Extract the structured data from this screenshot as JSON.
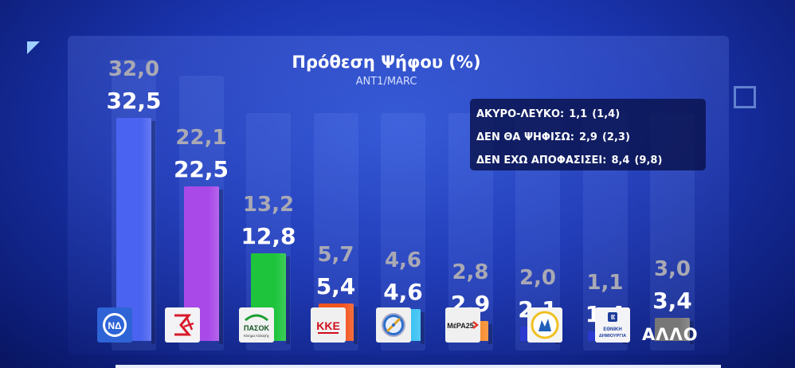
{
  "title": "Πρόθεση Ψήφου (%)",
  "subtitle": "ANT1/MARC",
  "info_lines": [
    {
      "label": "ΑΚΥΡΟ-ΛΕΥΚΟ:",
      "value": "1,1",
      "previous": "(1,4)"
    },
    {
      "label": "ΔΕΝ ΘΑ ΨΗΦΙΣΩ:",
      "value": "2,9",
      "previous": "(2,3)"
    },
    {
      "label": "ΔΕΝ ΕΧΩ ΑΠΟΦΑΣΙΣΕΙ:",
      "value": "8,4",
      "previous": "(9,8)"
    }
  ],
  "parties": [
    {
      "key": "nd",
      "current_label": "32,5",
      "previous_label": "32,0",
      "color": "#4a63f0",
      "logo_icon": "nd-logo-icon"
    },
    {
      "key": "syriza",
      "current_label": "22,5",
      "previous_label": "22,1",
      "color": "#a94ae8",
      "logo_icon": "syriza-logo-icon"
    },
    {
      "key": "pasok",
      "current_label": "12,8",
      "previous_label": "13,2",
      "color": "#1ec43c",
      "logo_icon": "pasok-logo-icon",
      "logo_text": "ΠΑΣΟΚ",
      "logo_sub": "Κίνημα Αλλαγής"
    },
    {
      "key": "kke",
      "current_label": "5,4",
      "previous_label": "5,7",
      "color": "#f2561e",
      "logo_icon": "kke-logo-icon",
      "logo_text": "ΚΚΕ"
    },
    {
      "key": "elliniki_lysi",
      "current_label": "4,6",
      "previous_label": "4,6",
      "color": "#38c0f2",
      "logo_icon": "compass-logo-icon"
    },
    {
      "key": "mera25",
      "current_label": "2,9",
      "previous_label": "2,8",
      "color": "#f88a2a",
      "logo_icon": "mera25-logo-icon",
      "logo_text": "ΜέΡΑ25"
    },
    {
      "key": "niki",
      "current_label": "2,1",
      "previous_label": "2,0",
      "color": "#2a3ad0",
      "logo_icon": "niki-logo-icon"
    },
    {
      "key": "ethniki_dimiourgia",
      "current_label": "1,4",
      "previous_label": "1,1",
      "color": "#2a3ad0",
      "logo_icon": "ethniki-dimiourgia-logo-icon",
      "logo_text": "ΕΘΝΙΚΗ ΔΗΜΙΟΥΡΓΙΑ"
    },
    {
      "key": "allo",
      "current_label": "3,4",
      "previous_label": "3,0",
      "color": "#777777",
      "logo_icon": "",
      "name": "ΑΛΛΟ"
    }
  ],
  "chart_data": {
    "type": "bar",
    "title": "Πρόθεση Ψήφου (%)",
    "subtitle": "ANT1/MARC",
    "categories": [
      "ΝΔ",
      "ΣΥΡΙΖΑ",
      "ΠΑΣΟΚ",
      "ΚΚΕ",
      "Ελληνική Λύση",
      "ΜέΡΑ25",
      "ΝΙΚΗ",
      "ΕΘΝΙΚΗ ΔΗΜΙΟΥΡΓΙΑ",
      "ΑΛΛΟ"
    ],
    "series": [
      {
        "values": [
          32.5,
          22.5,
          12.8,
          5.4,
          4.6,
          2.9,
          2.1,
          1.4,
          3.4
        ]
      },
      {
        "values": [
          32.0,
          22.1,
          13.2,
          5.7,
          4.6,
          2.8,
          2.0,
          1.1,
          3.0
        ]
      }
    ],
    "ylim": [
      0,
      35
    ],
    "grid": false,
    "legend": "none"
  }
}
